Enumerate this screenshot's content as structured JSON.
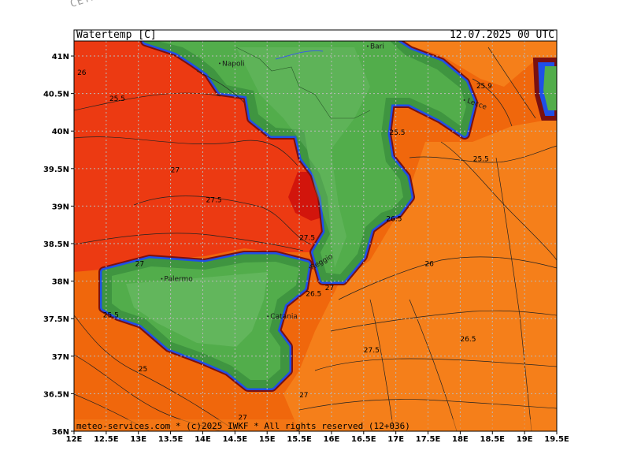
{
  "model_tag": "CETA - m",
  "header": {
    "title": "Watertemp [C]",
    "datetime": "12.07.2025 00 UTC"
  },
  "footer": "meteo-services.com * (c)2025 IWKF * All rights reserved (12+036)",
  "axes": {
    "lon_ticks": [
      "12E",
      "12.5E",
      "13E",
      "13.5E",
      "14E",
      "14.5E",
      "15E",
      "15.5E",
      "16E",
      "16.5E",
      "17E",
      "17.5E",
      "18E",
      "18.5E",
      "19E",
      "19.5E"
    ],
    "lat_ticks": [
      "41N",
      "40.5N",
      "40N",
      "39.5N",
      "39N",
      "38.5N",
      "38N",
      "37.5N",
      "37N",
      "36.5N",
      "36N"
    ],
    "lon_range": [
      12,
      19.5
    ],
    "lat_range": [
      36,
      41.2
    ]
  },
  "places": [
    {
      "name": "Napoli",
      "lon": 14.3,
      "lat": 40.87
    },
    {
      "name": "Bari",
      "lon": 16.6,
      "lat": 41.1
    },
    {
      "name": "Lecce",
      "lon": 18.1,
      "lat": 40.38
    },
    {
      "name": "Palermo",
      "lon": 13.4,
      "lat": 38.0
    },
    {
      "name": "Catania",
      "lon": 15.05,
      "lat": 37.5
    },
    {
      "name": "Reggio",
      "lon": 15.7,
      "lat": 38.15
    }
  ],
  "contour_labels": [
    {
      "text": "26",
      "lon": 12.05,
      "lat": 40.75
    },
    {
      "text": "25.5",
      "lon": 12.55,
      "lat": 40.4
    },
    {
      "text": "25.9",
      "lon": 18.25,
      "lat": 40.57
    },
    {
      "text": "25.5",
      "lon": 16.9,
      "lat": 39.95
    },
    {
      "text": "25.5",
      "lon": 18.2,
      "lat": 39.6
    },
    {
      "text": "27",
      "lon": 13.5,
      "lat": 39.45
    },
    {
      "text": "27.5",
      "lon": 14.05,
      "lat": 39.05
    },
    {
      "text": "26.5",
      "lon": 16.85,
      "lat": 38.8
    },
    {
      "text": "27.5",
      "lon": 15.5,
      "lat": 38.55
    },
    {
      "text": "27",
      "lon": 12.95,
      "lat": 38.2
    },
    {
      "text": "26",
      "lon": 17.45,
      "lat": 38.2
    },
    {
      "text": "26.5",
      "lon": 15.6,
      "lat": 37.8
    },
    {
      "text": "27",
      "lon": 15.9,
      "lat": 37.88
    },
    {
      "text": "25.5",
      "lon": 12.45,
      "lat": 37.52
    },
    {
      "text": "26.5",
      "lon": 18.0,
      "lat": 37.2
    },
    {
      "text": "27.5",
      "lon": 16.5,
      "lat": 37.05
    },
    {
      "text": "25",
      "lon": 13.0,
      "lat": 36.8
    },
    {
      "text": "27",
      "lon": 15.5,
      "lat": 36.45
    },
    {
      "text": "27",
      "lon": 14.55,
      "lat": 36.15
    }
  ],
  "colors": {
    "sea_main": "#f0670c",
    "sea_orange": "#f57f1a",
    "sea_warm": "#ec3a12",
    "sea_hot": "#d2150c",
    "land": "#52ad4b",
    "coast_dark": "#3f9540",
    "coast_light": "#76c072",
    "coast_blue": "#1f4fe8",
    "coast_cold": "#7a1010",
    "grid": "#b9b9b9"
  }
}
